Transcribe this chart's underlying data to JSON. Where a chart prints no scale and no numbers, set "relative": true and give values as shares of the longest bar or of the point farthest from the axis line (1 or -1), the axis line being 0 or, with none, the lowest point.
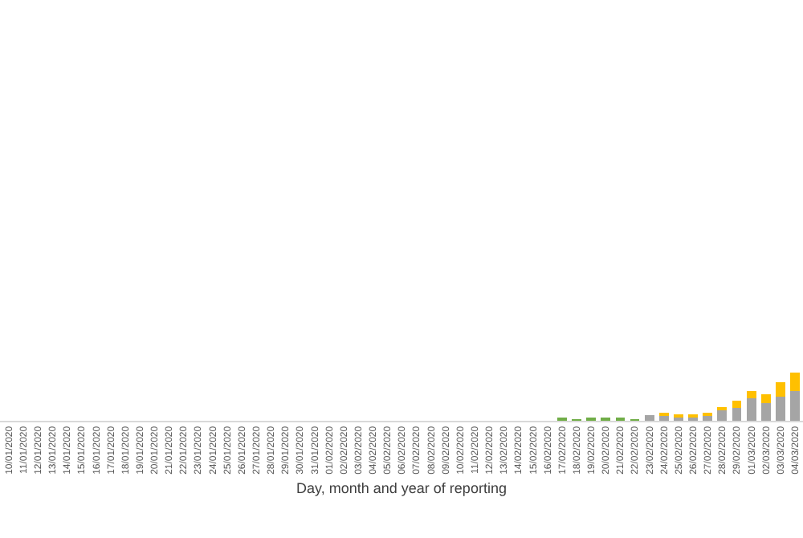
{
  "chart_data": {
    "type": "bar",
    "stacked": true,
    "relative": true,
    "xlabel": "Day, month and year of reporting",
    "categories": [
      "10/01/2020",
      "11/01/2020",
      "12/01/2020",
      "13/01/2020",
      "14/01/2020",
      "15/01/2020",
      "16/01/2020",
      "17/01/2020",
      "18/01/2020",
      "19/01/2020",
      "20/01/2020",
      "21/01/2020",
      "22/01/2020",
      "23/01/2020",
      "24/01/2020",
      "25/01/2020",
      "26/01/2020",
      "27/01/2020",
      "28/01/2020",
      "29/01/2020",
      "30/01/2020",
      "31/01/2020",
      "01/02/2020",
      "02/02/2020",
      "03/02/2020",
      "04/02/2020",
      "05/02/2020",
      "06/02/2020",
      "07/02/2020",
      "08/02/2020",
      "09/02/2020",
      "10/02/2020",
      "11/02/2020",
      "12/02/2020",
      "13/02/2020",
      "14/02/2020",
      "15/02/2020",
      "16/02/2020",
      "17/02/2020",
      "18/02/2020",
      "19/02/2020",
      "20/02/2020",
      "21/02/2020",
      "22/02/2020",
      "23/02/2020",
      "24/02/2020",
      "25/02/2020",
      "26/02/2020",
      "27/02/2020",
      "28/02/2020",
      "29/02/2020",
      "01/03/2020",
      "02/03/2020",
      "03/03/2020",
      "04/03/2020"
    ],
    "series": [
      {
        "color": "#a5a5a5",
        "values": [
          null,
          null,
          null,
          null,
          null,
          null,
          null,
          null,
          null,
          null,
          null,
          null,
          null,
          null,
          null,
          null,
          null,
          null,
          null,
          null,
          null,
          null,
          null,
          null,
          null,
          null,
          null,
          null,
          null,
          null,
          null,
          null,
          null,
          null,
          null,
          null,
          null,
          null,
          null,
          null,
          null,
          null,
          null,
          null,
          0.11,
          0.12,
          0.08,
          0.07,
          0.13,
          0.22,
          0.26,
          0.47,
          0.36,
          0.49,
          0.61
        ]
      },
      {
        "color": "#ffc000",
        "values": [
          null,
          null,
          null,
          null,
          null,
          null,
          null,
          null,
          null,
          null,
          null,
          null,
          null,
          null,
          null,
          null,
          null,
          null,
          null,
          null,
          null,
          null,
          null,
          null,
          null,
          null,
          null,
          null,
          null,
          null,
          null,
          null,
          null,
          null,
          null,
          null,
          null,
          null,
          null,
          null,
          null,
          null,
          null,
          null,
          null,
          0.03,
          0.03,
          0.03,
          0.04,
          0.07,
          0.16,
          0.14,
          0.19,
          0.3,
          0.39
        ]
      },
      {
        "color": "#70ad47",
        "values": [
          null,
          null,
          null,
          null,
          null,
          null,
          null,
          null,
          null,
          null,
          null,
          null,
          null,
          null,
          null,
          null,
          null,
          null,
          null,
          null,
          null,
          null,
          null,
          null,
          null,
          null,
          null,
          null,
          null,
          null,
          null,
          null,
          null,
          null,
          null,
          null,
          null,
          null,
          0.05,
          0.02,
          0.04,
          0.04,
          0.04,
          0.03,
          null,
          null,
          null,
          null,
          null,
          null,
          null,
          null,
          null,
          null,
          null
        ]
      }
    ]
  }
}
